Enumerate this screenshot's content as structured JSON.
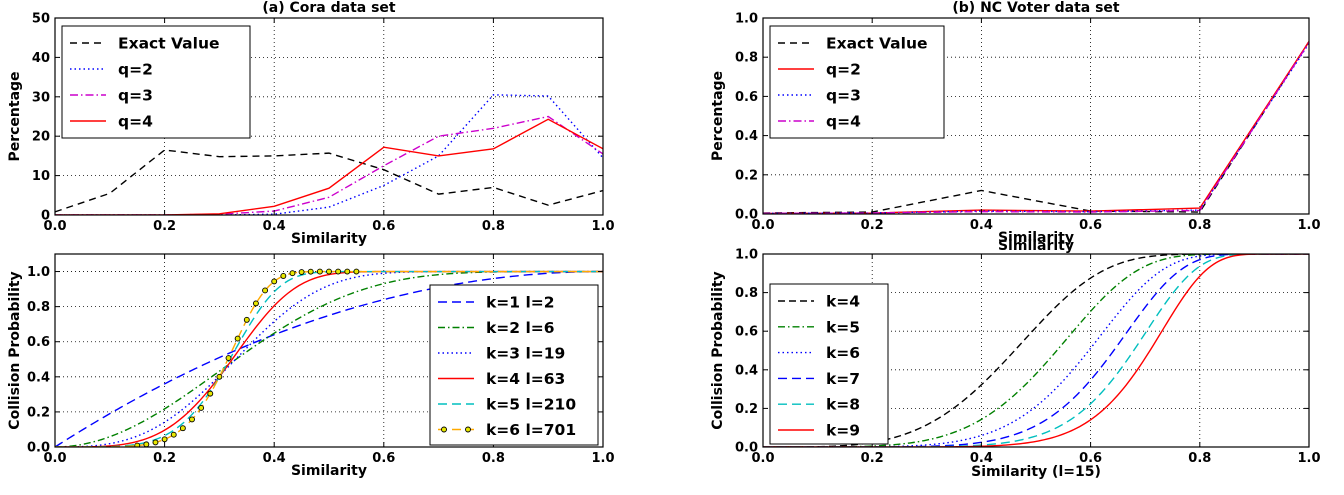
{
  "chart_data": [
    {
      "type": "line",
      "title": "(a) Cora data set",
      "xlabel": "Similarity",
      "ylabel": "Percentage",
      "xlim": [
        0,
        1
      ],
      "ylim": [
        0,
        50
      ],
      "xticks": [
        "0.0",
        "0.2",
        "0.4",
        "0.6",
        "0.8",
        "1.0"
      ],
      "xtick_values": [
        0,
        0.2,
        0.4,
        0.6,
        0.8,
        1.0
      ],
      "yticks": [
        "0",
        "10",
        "20",
        "30",
        "40",
        "50"
      ],
      "ytick_values": [
        0,
        10,
        20,
        30,
        40,
        50
      ],
      "grid": true,
      "legend_position": "top-left",
      "series": [
        {
          "name": "Exact Value",
          "color": "#000000",
          "dash": "7,5",
          "x": [
            0,
            0.1,
            0.2,
            0.3,
            0.4,
            0.5,
            0.6,
            0.7,
            0.8,
            0.9,
            1.0
          ],
          "y": [
            0.8,
            5.5,
            16.5,
            14.8,
            15.0,
            15.7,
            11.5,
            5.3,
            7.0,
            2.5,
            6.2
          ]
        },
        {
          "name": "q=2",
          "color": "#0000ff",
          "dash": "1.5,3",
          "x": [
            0,
            0.1,
            0.2,
            0.3,
            0.4,
            0.5,
            0.6,
            0.7,
            0.8,
            0.9,
            1.0
          ],
          "y": [
            0,
            0,
            0,
            0,
            0.2,
            2.0,
            7.5,
            15.0,
            30.5,
            30.2,
            14.5
          ]
        },
        {
          "name": "q=3",
          "color": "#cc00cc",
          "dash": "8,3,1.5,3",
          "x": [
            0,
            0.1,
            0.2,
            0.3,
            0.4,
            0.5,
            0.6,
            0.7,
            0.8,
            0.9,
            1.0
          ],
          "y": [
            0,
            0,
            0,
            0.2,
            1.0,
            4.5,
            12.5,
            20.0,
            22.0,
            25.0,
            15.5
          ]
        },
        {
          "name": "q=4",
          "color": "#ff0000",
          "dash": "",
          "x": [
            0,
            0.1,
            0.2,
            0.3,
            0.4,
            0.5,
            0.6,
            0.7,
            0.8,
            0.9,
            1.0
          ],
          "y": [
            0,
            0,
            0,
            0.3,
            2.2,
            6.8,
            17.2,
            15.0,
            16.8,
            24.3,
            16.8
          ]
        }
      ]
    },
    {
      "type": "line",
      "title": "(b) NC Voter data set",
      "xlabel": "Similarity",
      "ylabel": "Percentage",
      "xlim": [
        0,
        1
      ],
      "ylim": [
        0,
        1
      ],
      "xticks": [
        "0.0",
        "0.2",
        "0.4",
        "0.6",
        "0.8",
        "1.0"
      ],
      "xtick_values": [
        0,
        0.2,
        0.4,
        0.6,
        0.8,
        1.0
      ],
      "yticks": [
        "0.0",
        "0.2",
        "0.4",
        "0.6",
        "0.8",
        "1.0"
      ],
      "ytick_values": [
        0,
        0.2,
        0.4,
        0.6,
        0.8,
        1.0
      ],
      "grid": true,
      "legend_position": "top-left",
      "series": [
        {
          "name": "Exact Value",
          "color": "#000000",
          "dash": "7,5",
          "x": [
            0,
            0.2,
            0.4,
            0.6,
            0.8,
            1.0
          ],
          "y": [
            0.005,
            0.01,
            0.12,
            0.015,
            0.01,
            0.88
          ]
        },
        {
          "name": "q=2",
          "color": "#ff0000",
          "dash": "",
          "x": [
            0,
            0.2,
            0.4,
            0.6,
            0.8,
            1.0
          ],
          "y": [
            0.003,
            0.005,
            0.02,
            0.015,
            0.03,
            0.88
          ]
        },
        {
          "name": "q=3",
          "color": "#0000ff",
          "dash": "1.5,3",
          "x": [
            0,
            0.2,
            0.4,
            0.6,
            0.8,
            1.0
          ],
          "y": [
            0.003,
            0.005,
            0.015,
            0.012,
            0.02,
            0.87
          ]
        },
        {
          "name": "q=4",
          "color": "#cc00cc",
          "dash": "8,3,1.5,3",
          "x": [
            0,
            0.2,
            0.4,
            0.6,
            0.8,
            1.0
          ],
          "y": [
            0.003,
            0.005,
            0.012,
            0.01,
            0.018,
            0.875
          ]
        }
      ]
    },
    {
      "type": "line",
      "title": "",
      "xlabel": "Similarity",
      "ylabel": "Collision Probability",
      "xlim": [
        0,
        1
      ],
      "ylim": [
        0,
        1.1
      ],
      "xticks": [
        "0.0",
        "0.2",
        "0.4",
        "0.6",
        "0.8",
        "1.0"
      ],
      "xtick_values": [
        0,
        0.2,
        0.4,
        0.6,
        0.8,
        1.0
      ],
      "yticks": [
        "0.0",
        "0.2",
        "0.4",
        "0.6",
        "0.8",
        "1.0"
      ],
      "ytick_values": [
        0,
        0.2,
        0.4,
        0.6,
        0.8,
        1.0
      ],
      "grid": true,
      "legend_position": "lower-right",
      "formula": "1-(1-s^k)^l",
      "series": [
        {
          "name": "k=1 l=2",
          "k": 1,
          "l": 2,
          "color": "#0000ff",
          "dash": "9,5",
          "markers": false
        },
        {
          "name": "k=2 l=6",
          "k": 2,
          "l": 6,
          "color": "#008000",
          "dash": "7,3,1.5,3",
          "markers": false
        },
        {
          "name": "k=3 l=19",
          "k": 3,
          "l": 19,
          "color": "#0000ff",
          "dash": "1.5,3",
          "markers": false
        },
        {
          "name": "k=4 l=63",
          "k": 4,
          "l": 63,
          "color": "#ff0000",
          "dash": "",
          "markers": false
        },
        {
          "name": "k=5 l=210",
          "k": 5,
          "l": 210,
          "color": "#00bfbf",
          "dash": "9,5",
          "markers": false
        },
        {
          "name": "k=6 l=701",
          "k": 6,
          "l": 701,
          "color": "#ffaa00",
          "dash": "9,5",
          "markers": true,
          "marker_color": "#e8e800"
        }
      ]
    },
    {
      "type": "line",
      "title": "Similarity",
      "xlabel": "Similarity (l=15)",
      "ylabel": "Collision Probability",
      "xlim": [
        0,
        1
      ],
      "ylim": [
        0,
        1
      ],
      "xticks": [
        "0.0",
        "0.2",
        "0.4",
        "0.6",
        "0.8",
        "1.0"
      ],
      "xtick_values": [
        0,
        0.2,
        0.4,
        0.6,
        0.8,
        1.0
      ],
      "yticks": [
        "0.0",
        "0.2",
        "0.4",
        "0.6",
        "0.8",
        "1.0"
      ],
      "ytick_values": [
        0,
        0.2,
        0.4,
        0.6,
        0.8,
        1.0
      ],
      "grid": true,
      "legend_position": "lower-left",
      "formula": "1-(1-s^k)^15",
      "series": [
        {
          "name": "k=4",
          "k": 4,
          "l": 15,
          "color": "#000000",
          "dash": "7,4",
          "markers": false
        },
        {
          "name": "k=5",
          "k": 5,
          "l": 15,
          "color": "#008000",
          "dash": "7,3,1.5,3",
          "markers": false
        },
        {
          "name": "k=6",
          "k": 6,
          "l": 15,
          "color": "#0000ff",
          "dash": "1.5,3",
          "markers": false
        },
        {
          "name": "k=7",
          "k": 7,
          "l": 15,
          "color": "#0000ff",
          "dash": "9,5",
          "markers": false
        },
        {
          "name": "k=8",
          "k": 8,
          "l": 15,
          "color": "#00bfbf",
          "dash": "9,5",
          "markers": false
        },
        {
          "name": "k=9",
          "k": 9,
          "l": 15,
          "color": "#ff0000",
          "dash": "",
          "markers": false
        }
      ]
    }
  ]
}
